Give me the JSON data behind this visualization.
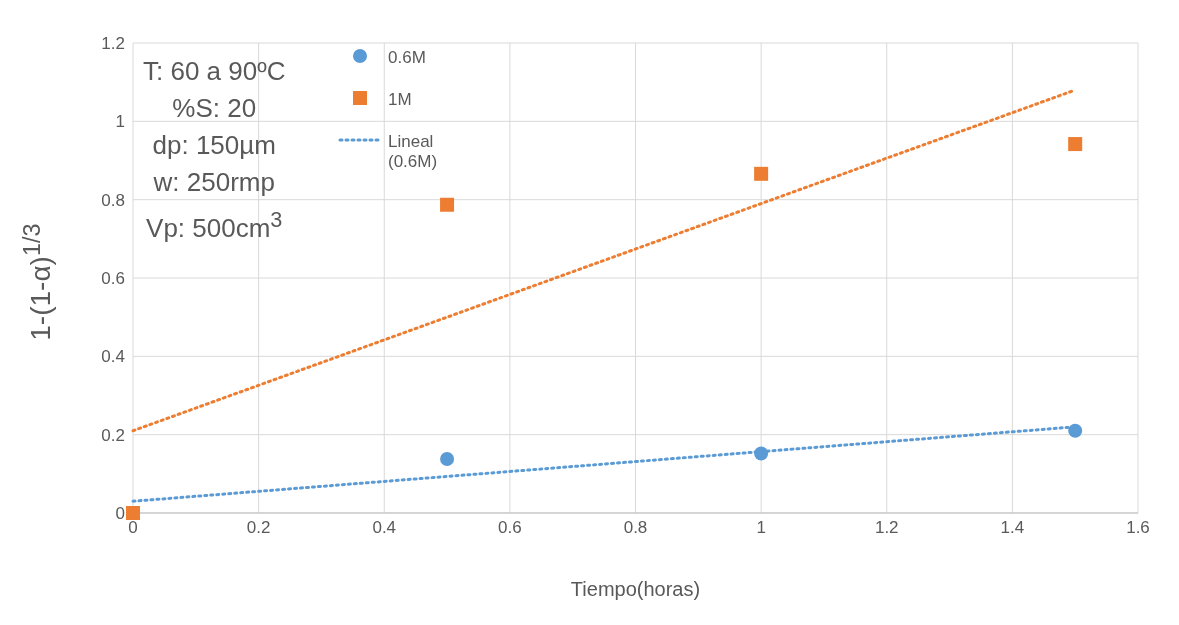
{
  "chart_data": {
    "type": "scatter",
    "xlabel": "Tiempo(horas)",
    "ylabel": "1-(1-α)$^{1/3}$",
    "xlim": [
      0,
      1.6
    ],
    "xticks": [
      0,
      0.2,
      0.4,
      0.6,
      0.8,
      1,
      1.2,
      1.4,
      1.6
    ],
    "ylim": [
      0,
      1.2
    ],
    "yticks": [
      0,
      0.2,
      0.4,
      0.6,
      0.8,
      1,
      1.2
    ],
    "grid": true,
    "legend": "top left",
    "annotations": [
      "T: 60 a 90ºC",
      "%S: 20",
      "dp: 150µm",
      "w: 250rmp",
      "Vp: 500cm$^{3}$"
    ],
    "series": [
      {
        "name": "0.6M",
        "type": "scatter",
        "marker": "circle",
        "color": "#5b9bd5",
        "x": [
          0.5,
          1,
          1.5
        ],
        "values": [
          0.138,
          0.152,
          0.21
        ]
      },
      {
        "name": "1M",
        "type": "scatter",
        "marker": "square",
        "color": "#ed7d31",
        "x": [
          0,
          0.5,
          1,
          1.5
        ],
        "values": [
          0,
          0.787,
          0.866,
          0.942
        ]
      },
      {
        "name": "Lineal (0.6M)",
        "type": "line",
        "marker": "none",
        "line_style": "dotted",
        "color": "#5b9bd5",
        "x": [
          0,
          1.5
        ],
        "values": [
          0.03,
          0.22
        ]
      },
      {
        "type": "line",
        "marker": "none",
        "line_style": "dotted",
        "color": "#ed7d31",
        "x": [
          0,
          1.5
        ],
        "values": [
          0.21,
          1.08
        ]
      }
    ]
  }
}
